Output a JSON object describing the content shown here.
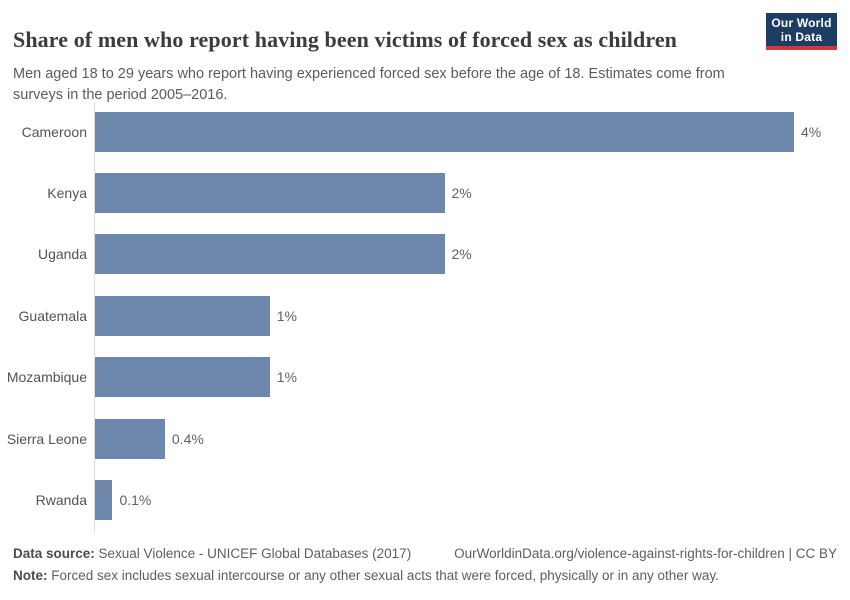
{
  "header": {
    "title": "Share of men who report having been victims of forced sex as children",
    "subtitle": "Men aged 18 to 29 years who report having experienced forced sex before the age of 18. Estimates come from surveys in the period 2005–2016.",
    "logo": {
      "line1": "Our World",
      "line2": "in Data"
    }
  },
  "chart_data": {
    "type": "bar",
    "orientation": "horizontal",
    "title": "Share of men who report having been victims of forced sex as children",
    "categories": [
      "Cameroon",
      "Kenya",
      "Uganda",
      "Guatemala",
      "Mozambique",
      "Sierra Leone",
      "Rwanda"
    ],
    "values": [
      4,
      2,
      2,
      1,
      1,
      0.4,
      0.1
    ],
    "value_labels": [
      "4%",
      "2%",
      "2%",
      "1%",
      "1%",
      "0.4%",
      "0.1%"
    ],
    "unit": "%",
    "xlim": [
      0,
      4
    ],
    "grid": false,
    "legend": "none",
    "bar_color": "#6d87ad"
  },
  "footer": {
    "datasource_label": "Data source:",
    "datasource_value": " Sexual Violence - UNICEF Global Databases (2017)",
    "attribution": "OurWorldinData.org/violence-against-rights-for-children | CC BY",
    "note_label": "Note:",
    "note_value": " Forced sex includes sexual intercourse or any other sexual acts that were forced, physically or in any other way."
  },
  "colors": {
    "bar": "#6d87ad",
    "axis_line": "#dedede",
    "logo_background": "#1d3d63",
    "logo_accent": "#d0383f",
    "title_text": "#3c3c3c",
    "body_text": "#5b5b5b"
  }
}
